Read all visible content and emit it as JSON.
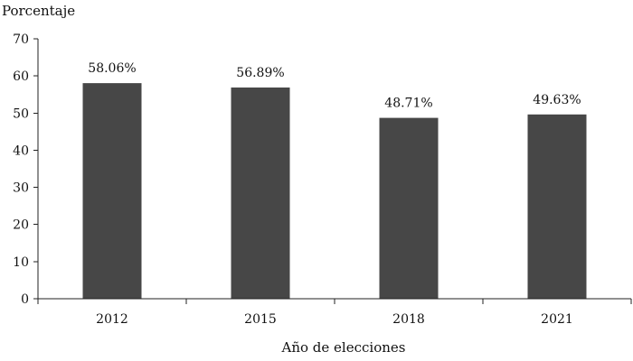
{
  "chart_data": {
    "type": "bar",
    "categories": [
      "2012",
      "2015",
      "2018",
      "2021"
    ],
    "values": [
      58.06,
      56.89,
      48.71,
      49.63
    ],
    "data_labels": [
      "58.06%",
      "56.89%",
      "48.71%",
      "49.63%"
    ],
    "title": "",
    "xlabel": "Año de elecciones",
    "ylabel": "Porcentaje",
    "ylim": [
      0,
      70
    ],
    "yticks": [
      0,
      10,
      20,
      30,
      40,
      50,
      60,
      70
    ],
    "ytick_labels": [
      "0",
      "10",
      "20",
      "30",
      "40",
      "50",
      "60",
      "70"
    ],
    "grid": false,
    "legend": "none",
    "colors": {
      "bar": "#474747",
      "axis": "#222222",
      "text": "#111111"
    }
  }
}
